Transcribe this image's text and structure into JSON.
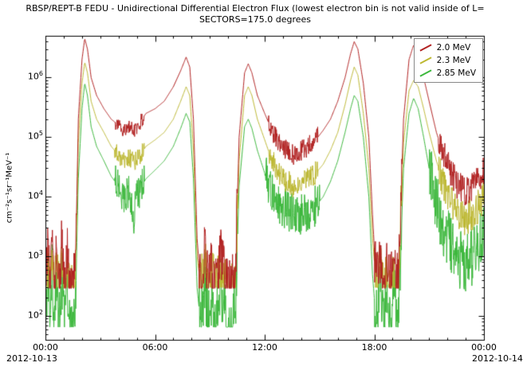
{
  "chart_data": {
    "type": "line",
    "title": "RBSP/REPT-B  FEDU - Unidirectional Differential Electron Flux (lowest electron bin is not valid inside of L=",
    "subtitle": "SECTORS=175.0 degrees",
    "ylabel": "cm⁻²s⁻¹sr⁻¹MeV⁻¹",
    "y_scale": "log",
    "grid": false,
    "legend_position": "top-right",
    "x_axis": {
      "range_h": [
        0,
        24
      ],
      "minor_step_h": 1,
      "ticks": [
        {
          "h": 0,
          "label": "00:00"
        },
        {
          "h": 6,
          "label": "06:00"
        },
        {
          "h": 12,
          "label": "12:00"
        },
        {
          "h": 18,
          "label": "18:00"
        },
        {
          "h": 24,
          "label": "00:00"
        }
      ],
      "start_date": "2012-10-13",
      "end_date": "2012-10-14"
    },
    "y_axis": {
      "tick_exponents": [
        2,
        3,
        4,
        5,
        6
      ],
      "log_range": [
        1.6,
        6.7
      ]
    },
    "series": [
      {
        "name": "2.0 MeV",
        "color": "#b22222",
        "floor": 290,
        "noise": [
          [
            0,
            1.7,
            0.45
          ],
          [
            3.8,
            5.4,
            0.12
          ],
          [
            8.4,
            10.5,
            0.5
          ],
          [
            12.2,
            14.9,
            0.18
          ],
          [
            18.0,
            19.5,
            0.5
          ],
          [
            21.5,
            24,
            0.25
          ]
        ],
        "points": [
          [
            0.0,
            300
          ],
          [
            0.15,
            1500
          ],
          [
            0.25,
            200
          ],
          [
            0.35,
            2500
          ],
          [
            0.5,
            150
          ],
          [
            0.6,
            1800
          ],
          [
            0.75,
            300
          ],
          [
            0.9,
            2000
          ],
          [
            1.05,
            300
          ],
          [
            1.2,
            1200
          ],
          [
            1.35,
            300
          ],
          [
            1.5,
            300
          ],
          [
            1.65,
            800
          ],
          [
            1.8,
            200000.0
          ],
          [
            2.0,
            2000000.0
          ],
          [
            2.15,
            4500000.0
          ],
          [
            2.3,
            3000000.0
          ],
          [
            2.5,
            1000000.0
          ],
          [
            2.8,
            500000.0
          ],
          [
            3.2,
            300000.0
          ],
          [
            3.6,
            200000.0
          ],
          [
            4.0,
            160000.0
          ],
          [
            4.3,
            130000.0
          ],
          [
            4.6,
            150000.0
          ],
          [
            4.9,
            130000.0
          ],
          [
            5.2,
            180000.0
          ],
          [
            5.5,
            250000.0
          ],
          [
            6.0,
            300000.0
          ],
          [
            6.5,
            400000.0
          ],
          [
            7.0,
            700000.0
          ],
          [
            7.4,
            1300000.0
          ],
          [
            7.7,
            2200000.0
          ],
          [
            7.9,
            1500000.0
          ],
          [
            8.1,
            200000.0
          ],
          [
            8.3,
            2000
          ],
          [
            8.5,
            300
          ],
          [
            8.7,
            1500
          ],
          [
            8.9,
            300
          ],
          [
            9.1,
            800
          ],
          [
            9.3,
            300
          ],
          [
            9.6,
            1000
          ],
          [
            9.9,
            300
          ],
          [
            10.2,
            300
          ],
          [
            10.4,
            600
          ],
          [
            10.6,
            100000.0
          ],
          [
            10.9,
            1200000.0
          ],
          [
            11.1,
            1700000.0
          ],
          [
            11.3,
            1200000.0
          ],
          [
            11.6,
            500000.0
          ],
          [
            12.0,
            250000.0
          ],
          [
            12.4,
            130000.0
          ],
          [
            12.8,
            80000.0
          ],
          [
            13.2,
            60000.0
          ],
          [
            13.6,
            50000.0
          ],
          [
            14.0,
            60000.0
          ],
          [
            14.4,
            70000.0
          ],
          [
            14.8,
            90000.0
          ],
          [
            15.2,
            130000.0
          ],
          [
            15.6,
            200000.0
          ],
          [
            16.0,
            400000.0
          ],
          [
            16.4,
            1000000.0
          ],
          [
            16.7,
            2500000.0
          ],
          [
            16.9,
            4000000.0
          ],
          [
            17.1,
            3000000.0
          ],
          [
            17.4,
            800000.0
          ],
          [
            17.7,
            100000.0
          ],
          [
            17.9,
            5000
          ],
          [
            18.1,
            400
          ],
          [
            18.3,
            1500
          ],
          [
            18.5,
            300
          ],
          [
            18.7,
            900
          ],
          [
            18.9,
            300
          ],
          [
            19.1,
            1200
          ],
          [
            19.3,
            300
          ],
          [
            19.6,
            200000.0
          ],
          [
            19.9,
            2000000.0
          ],
          [
            20.15,
            3500000.0
          ],
          [
            20.4,
            2500000.0
          ],
          [
            20.7,
            1000000.0
          ],
          [
            21.0,
            400000.0
          ],
          [
            21.4,
            120000.0
          ],
          [
            21.8,
            50000.0
          ],
          [
            22.2,
            25000.0
          ],
          [
            22.6,
            15000.0
          ],
          [
            23.0,
            12000.0
          ],
          [
            23.4,
            15000.0
          ],
          [
            23.7,
            20000.0
          ],
          [
            24.0,
            30000.0
          ]
        ]
      },
      {
        "name": "2.3 MeV",
        "color": "#bdb832",
        "floor": 300,
        "noise": [
          [
            0,
            1.7,
            0.4
          ],
          [
            3.8,
            5.4,
            0.15
          ],
          [
            8.4,
            10.5,
            0.45
          ],
          [
            12.2,
            14.9,
            0.2
          ],
          [
            18.0,
            19.5,
            0.45
          ],
          [
            21.5,
            24,
            0.3
          ]
        ],
        "points": [
          [
            0.0,
            300
          ],
          [
            0.15,
            700
          ],
          [
            0.25,
            300
          ],
          [
            0.35,
            900
          ],
          [
            0.5,
            300
          ],
          [
            0.6,
            700
          ],
          [
            0.75,
            300
          ],
          [
            0.9,
            800
          ],
          [
            1.05,
            300
          ],
          [
            1.2,
            600
          ],
          [
            1.35,
            300
          ],
          [
            1.5,
            300
          ],
          [
            1.65,
            500
          ],
          [
            1.8,
            80000.0
          ],
          [
            2.0,
            800000.0
          ],
          [
            2.15,
            1800000.0
          ],
          [
            2.3,
            1200000.0
          ],
          [
            2.5,
            400000.0
          ],
          [
            2.8,
            200000.0
          ],
          [
            3.2,
            120000.0
          ],
          [
            3.6,
            70000.0
          ],
          [
            4.0,
            50000.0
          ],
          [
            4.3,
            40000.0
          ],
          [
            4.6,
            45000.0
          ],
          [
            4.9,
            40000.0
          ],
          [
            5.2,
            50000.0
          ],
          [
            5.5,
            70000.0
          ],
          [
            6.0,
            90000.0
          ],
          [
            6.5,
            120000.0
          ],
          [
            7.0,
            200000.0
          ],
          [
            7.4,
            400000.0
          ],
          [
            7.7,
            700000.0
          ],
          [
            7.9,
            500000.0
          ],
          [
            8.1,
            60000.0
          ],
          [
            8.3,
            1000
          ],
          [
            8.5,
            300
          ],
          [
            8.7,
            800
          ],
          [
            8.9,
            300
          ],
          [
            9.1,
            500
          ],
          [
            9.3,
            300
          ],
          [
            9.6,
            600
          ],
          [
            9.9,
            300
          ],
          [
            10.2,
            300
          ],
          [
            10.4,
            400
          ],
          [
            10.6,
            40000.0
          ],
          [
            10.9,
            500000.0
          ],
          [
            11.1,
            700000.0
          ],
          [
            11.3,
            500000.0
          ],
          [
            11.6,
            200000.0
          ],
          [
            12.0,
            90000.0
          ],
          [
            12.4,
            40000.0
          ],
          [
            12.8,
            25000.0
          ],
          [
            13.2,
            18000.0
          ],
          [
            13.6,
            15000.0
          ],
          [
            14.0,
            16000.0
          ],
          [
            14.4,
            20000.0
          ],
          [
            14.8,
            25000.0
          ],
          [
            15.2,
            35000.0
          ],
          [
            15.6,
            60000.0
          ],
          [
            16.0,
            120000.0
          ],
          [
            16.4,
            350000.0
          ],
          [
            16.7,
            900000.0
          ],
          [
            16.9,
            1500000.0
          ],
          [
            17.1,
            1100000.0
          ],
          [
            17.4,
            250000.0
          ],
          [
            17.7,
            30000.0
          ],
          [
            17.9,
            2000
          ],
          [
            18.1,
            350
          ],
          [
            18.3,
            800
          ],
          [
            18.5,
            300
          ],
          [
            18.7,
            500
          ],
          [
            18.9,
            300
          ],
          [
            19.1,
            600
          ],
          [
            19.3,
            300
          ],
          [
            19.6,
            80000.0
          ],
          [
            19.9,
            600000.0
          ],
          [
            20.15,
            900000.0
          ],
          [
            20.4,
            700000.0
          ],
          [
            20.7,
            300000.0
          ],
          [
            21.0,
            120000.0
          ],
          [
            21.4,
            40000.0
          ],
          [
            21.8,
            16000.0
          ],
          [
            22.2,
            8000
          ],
          [
            22.6,
            5000
          ],
          [
            23.0,
            4000
          ],
          [
            23.4,
            5000
          ],
          [
            23.7,
            7000
          ],
          [
            24.0,
            10000.0
          ]
        ]
      },
      {
        "name": "2.85 MeV",
        "color": "#3cb83c",
        "floor": 65,
        "noise": [
          [
            0,
            1.7,
            0.5
          ],
          [
            3.8,
            5.4,
            0.3
          ],
          [
            8.4,
            10.5,
            0.55
          ],
          [
            12.0,
            15.0,
            0.35
          ],
          [
            18.0,
            19.5,
            0.55
          ],
          [
            21.0,
            24,
            0.5
          ]
        ],
        "points": [
          [
            0.0,
            80
          ],
          [
            0.15,
            400
          ],
          [
            0.25,
            70
          ],
          [
            0.35,
            600
          ],
          [
            0.5,
            70
          ],
          [
            0.6,
            400
          ],
          [
            0.75,
            70
          ],
          [
            0.9,
            500
          ],
          [
            1.05,
            70
          ],
          [
            1.2,
            300
          ],
          [
            1.35,
            70
          ],
          [
            1.5,
            70
          ],
          [
            1.65,
            200
          ],
          [
            1.8,
            20000.0
          ],
          [
            2.0,
            300000.0
          ],
          [
            2.15,
            800000.0
          ],
          [
            2.3,
            500000.0
          ],
          [
            2.5,
            150000.0
          ],
          [
            2.8,
            70000.0
          ],
          [
            3.2,
            40000.0
          ],
          [
            3.6,
            22000.0
          ],
          [
            4.0,
            15000.0
          ],
          [
            4.3,
            11000.0
          ],
          [
            4.6,
            12000.0
          ],
          [
            4.8,
            4000
          ],
          [
            5.0,
            10000.0
          ],
          [
            5.2,
            14000.0
          ],
          [
            5.5,
            20000.0
          ],
          [
            6.0,
            28000.0
          ],
          [
            6.5,
            40000.0
          ],
          [
            7.0,
            70000.0
          ],
          [
            7.4,
            140000.0
          ],
          [
            7.7,
            250000.0
          ],
          [
            7.9,
            180000.0
          ],
          [
            8.1,
            20000.0
          ],
          [
            8.3,
            300
          ],
          [
            8.5,
            70
          ],
          [
            8.7,
            400
          ],
          [
            8.9,
            70
          ],
          [
            9.1,
            200
          ],
          [
            9.3,
            70
          ],
          [
            9.6,
            300
          ],
          [
            9.9,
            70
          ],
          [
            10.2,
            70
          ],
          [
            10.4,
            150
          ],
          [
            10.6,
            15000.0
          ],
          [
            10.9,
            150000.0
          ],
          [
            11.1,
            200000.0
          ],
          [
            11.3,
            140000.0
          ],
          [
            11.6,
            60000.0
          ],
          [
            12.0,
            25000.0
          ],
          [
            12.4,
            12000.0
          ],
          [
            12.8,
            8000
          ],
          [
            13.2,
            6000
          ],
          [
            13.6,
            5000
          ],
          [
            14.0,
            5000
          ],
          [
            14.4,
            6000
          ],
          [
            14.8,
            7000
          ],
          [
            15.2,
            10000.0
          ],
          [
            15.6,
            18000.0
          ],
          [
            16.0,
            40000.0
          ],
          [
            16.4,
            120000.0
          ],
          [
            16.7,
            300000.0
          ],
          [
            16.9,
            500000.0
          ],
          [
            17.1,
            400000.0
          ],
          [
            17.4,
            100000.0
          ],
          [
            17.7,
            10000.0
          ],
          [
            17.9,
            500
          ],
          [
            18.1,
            80
          ],
          [
            18.3,
            400
          ],
          [
            18.5,
            70
          ],
          [
            18.7,
            250
          ],
          [
            18.9,
            70
          ],
          [
            19.1,
            350
          ],
          [
            19.3,
            70
          ],
          [
            19.6,
            30000.0
          ],
          [
            19.9,
            250000.0
          ],
          [
            20.15,
            450000.0
          ],
          [
            20.4,
            300000.0
          ],
          [
            20.7,
            100000.0
          ],
          [
            21.0,
            30000.0
          ],
          [
            21.4,
            8000
          ],
          [
            21.8,
            3000
          ],
          [
            22.2,
            1500
          ],
          [
            22.6,
            900
          ],
          [
            23.0,
            800
          ],
          [
            23.4,
            1000
          ],
          [
            23.7,
            1500
          ],
          [
            24.0,
            2500
          ]
        ]
      }
    ]
  }
}
